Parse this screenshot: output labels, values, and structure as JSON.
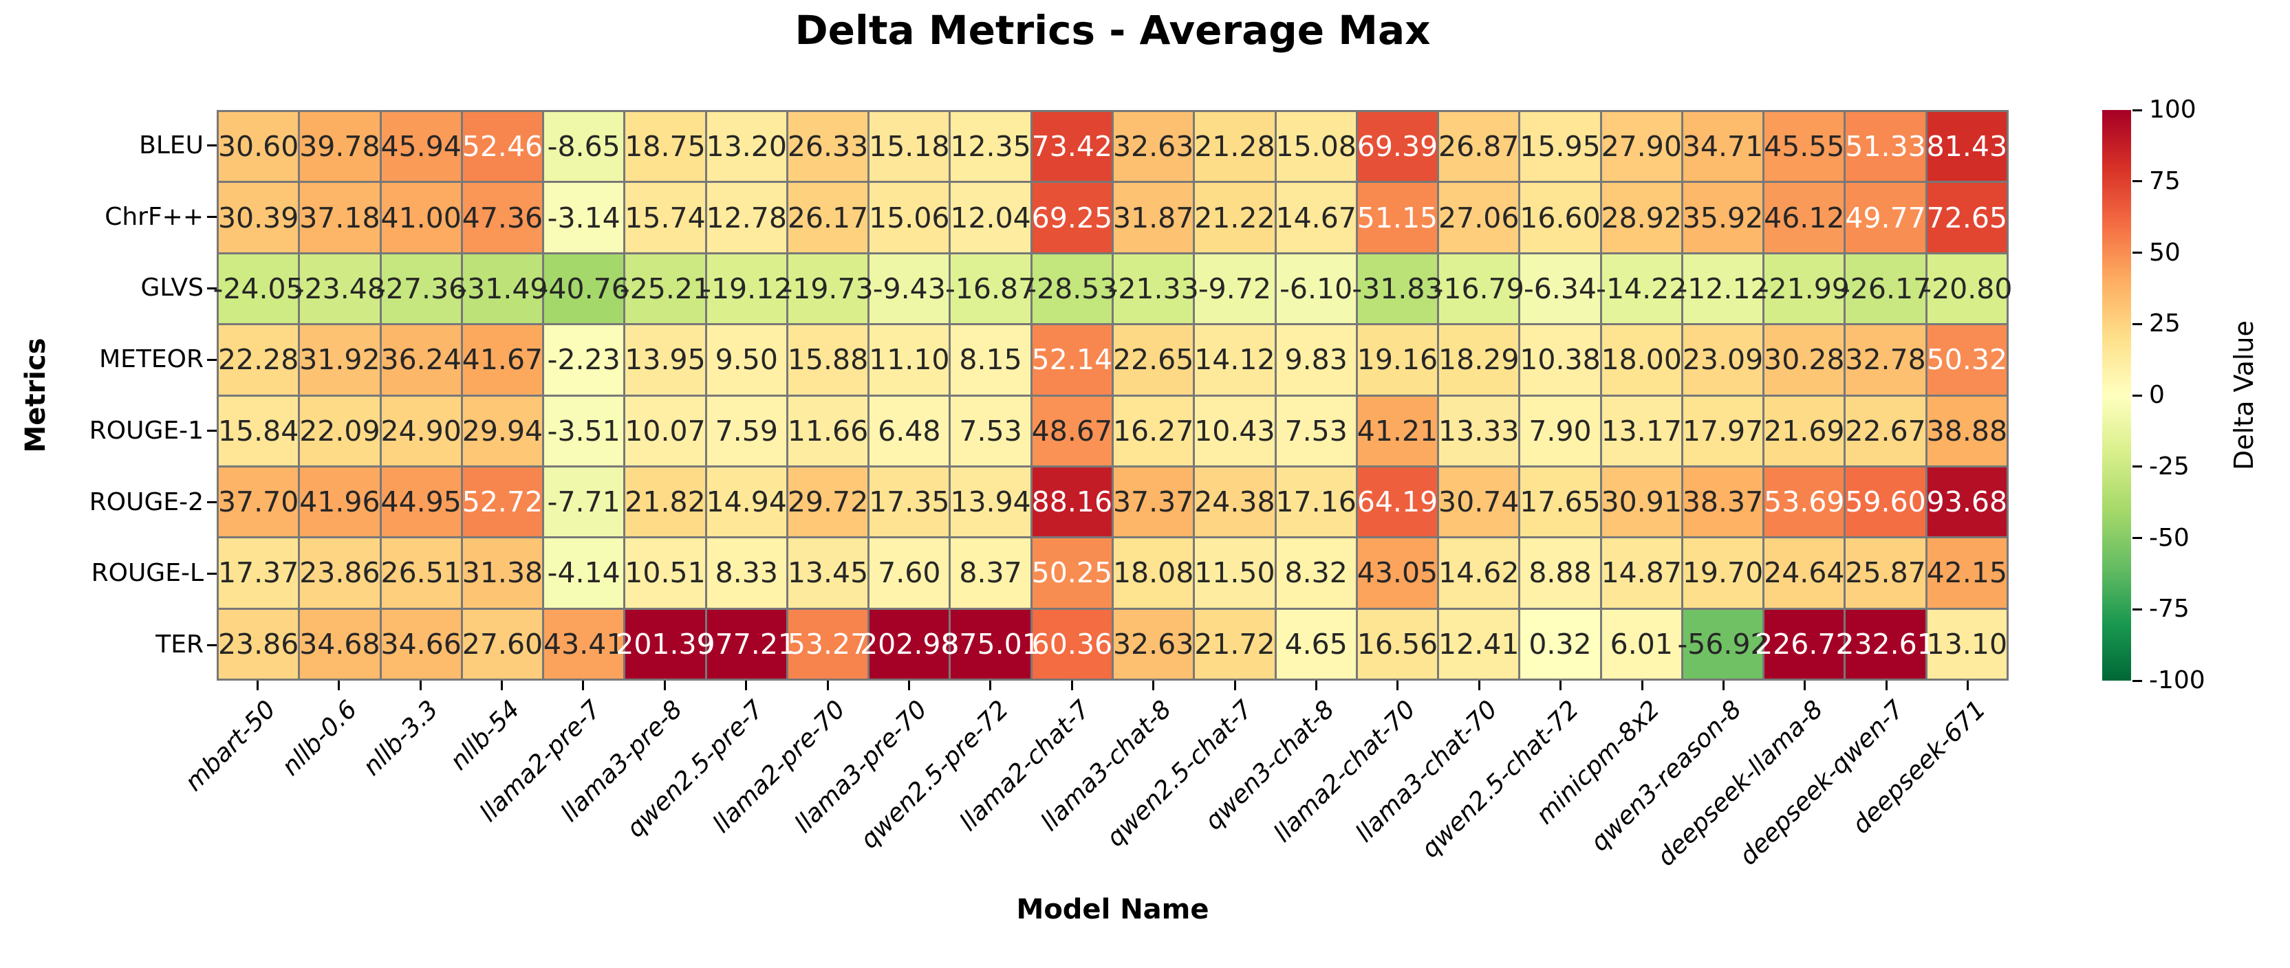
{
  "title": "Delta Metrics - Average Max",
  "chart_data": {
    "type": "heatmap",
    "title": "Delta Metrics - Average Max",
    "xlabel": "Model Name",
    "ylabel": "Metrics",
    "legend_position": "right-colorbar",
    "grid": "cell-borders",
    "rows": [
      "BLEU",
      "ChrF++",
      "GLVS",
      "METEOR",
      "ROUGE-1",
      "ROUGE-2",
      "ROUGE-L",
      "TER"
    ],
    "columns": [
      "mbart-50",
      "nllb-0.6",
      "nllb-3.3",
      "nllb-54",
      "llama2-pre-7",
      "llama3-pre-8",
      "qwen2.5-pre-7",
      "llama2-pre-70",
      "llama3-pre-70",
      "qwen2.5-pre-72",
      "llama2-chat-7",
      "llama3-chat-8",
      "qwen2.5-chat-7",
      "qwen3-chat-8",
      "llama2-chat-70",
      "llama3-chat-70",
      "qwen2.5-chat-72",
      "minicpm-8x2",
      "qwen3-reason-8",
      "deepseek-llama-8",
      "deepseek-qwen-7",
      "deepseek-671"
    ],
    "values": [
      [
        30.6,
        39.78,
        45.94,
        52.46,
        -8.65,
        18.75,
        13.2,
        26.33,
        15.18,
        12.35,
        73.42,
        32.63,
        21.28,
        15.08,
        69.39,
        26.87,
        15.95,
        27.9,
        34.71,
        45.55,
        51.33,
        81.43
      ],
      [
        30.39,
        37.18,
        41.0,
        47.36,
        -3.14,
        15.74,
        12.78,
        26.17,
        15.06,
        12.04,
        69.25,
        31.87,
        21.22,
        14.67,
        51.15,
        27.06,
        16.6,
        28.92,
        35.92,
        46.12,
        49.77,
        72.65
      ],
      [
        -24.05,
        -23.48,
        -27.36,
        -31.49,
        -40.76,
        -25.21,
        -19.12,
        -19.73,
        -9.43,
        -16.87,
        -28.53,
        -21.33,
        -9.72,
        -6.1,
        -31.83,
        -16.79,
        -6.34,
        -14.22,
        -12.12,
        -21.99,
        -26.17,
        -20.8
      ],
      [
        22.28,
        31.92,
        36.24,
        41.67,
        -2.23,
        13.95,
        9.5,
        15.88,
        11.1,
        8.15,
        52.14,
        22.65,
        14.12,
        9.83,
        19.16,
        18.29,
        10.38,
        18.0,
        23.09,
        30.28,
        32.78,
        50.32
      ],
      [
        15.84,
        22.09,
        24.9,
        29.94,
        -3.51,
        10.07,
        7.59,
        11.66,
        6.48,
        7.53,
        48.67,
        16.27,
        10.43,
        7.53,
        41.21,
        13.33,
        7.9,
        13.17,
        17.97,
        21.69,
        22.67,
        38.88
      ],
      [
        37.7,
        41.96,
        44.95,
        52.72,
        -7.71,
        21.82,
        14.94,
        29.72,
        17.35,
        13.94,
        88.16,
        37.37,
        24.38,
        17.16,
        64.19,
        30.74,
        17.65,
        30.91,
        38.37,
        53.69,
        59.6,
        93.68
      ],
      [
        17.37,
        23.86,
        26.51,
        31.38,
        -4.14,
        10.51,
        8.33,
        13.45,
        7.6,
        8.37,
        50.25,
        18.08,
        11.5,
        8.32,
        43.05,
        14.62,
        8.88,
        14.87,
        19.7,
        24.64,
        25.87,
        42.15
      ],
      [
        23.86,
        34.68,
        34.66,
        27.6,
        43.41,
        201.39,
        977.21,
        53.27,
        202.98,
        875.01,
        60.36,
        32.63,
        21.72,
        4.65,
        16.56,
        12.41,
        0.32,
        6.01,
        -56.92,
        226.72,
        232.61,
        13.1
      ]
    ],
    "value_format": "2-decimals",
    "colorbar": {
      "label": "Delta Value",
      "vmin": -100,
      "vmax": 100,
      "ticks": [
        100,
        75,
        50,
        25,
        0,
        -25,
        -50,
        -75,
        -100
      ],
      "colormap": "RdYlGn_r",
      "stops_high_to_low": [
        "#a50026",
        "#d73027",
        "#f46d43",
        "#fdae61",
        "#fee08b",
        "#ffffbf",
        "#d9ef8b",
        "#a6d96a",
        "#66bd63",
        "#1a9850",
        "#006837"
      ]
    },
    "cell_border_color": "#787878",
    "annotation_text_dark": "#262626",
    "annotation_text_light": "#ffffff"
  }
}
